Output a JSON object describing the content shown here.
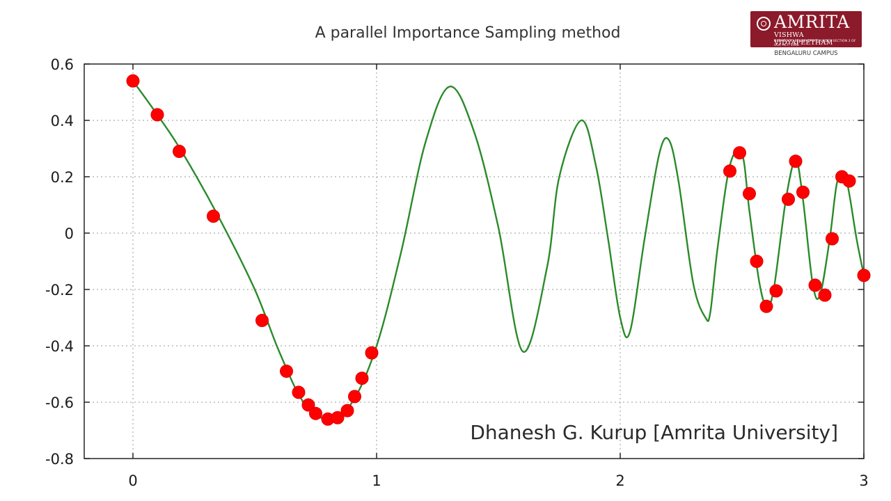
{
  "branding": {
    "logo_name": "AMRITA",
    "logo_subtitle": "VISHWA VIDYAPEETHAM",
    "logo_deemed": "DEEMED TO BE UNIVERSITY UNDER SECTION 3 OF UGC ACT, 1956",
    "campus": "BENGALURU CAMPUS",
    "logo_color": "#8b1a2b"
  },
  "chart_data": {
    "type": "scatter",
    "title": "A parallel Importance Sampling method",
    "annotation": "Dhanesh G. Kurup [Amrita University]",
    "xlabel": "",
    "ylabel": "",
    "xlim": [
      -0.2,
      3
    ],
    "ylim": [
      -0.8,
      0.6
    ],
    "x_ticks": [
      0,
      1,
      2,
      3
    ],
    "x_tick_labels": [
      "0",
      "1",
      "2",
      "3"
    ],
    "y_ticks": [
      0.6,
      0.4,
      0.2,
      0,
      -0.2,
      -0.4,
      -0.6,
      -0.8
    ],
    "y_tick_labels": [
      "0.6",
      "0.4",
      "0.2",
      "0",
      "-0.2",
      "-0.4",
      "-0.6",
      "-0.8"
    ],
    "grid": true,
    "curve": {
      "color": "#2a8a2a",
      "x": [
        0,
        0.1,
        0.2,
        0.35,
        0.5,
        0.6,
        0.7,
        0.8,
        0.9,
        1.0,
        1.1,
        1.2,
        1.3,
        1.4,
        1.5,
        1.6,
        1.7,
        1.75,
        1.84,
        1.9,
        1.95,
        2.0,
        2.04,
        2.1,
        2.16,
        2.2,
        2.24,
        2.3,
        2.35,
        2.37,
        2.4,
        2.45,
        2.5,
        2.53,
        2.57,
        2.6,
        2.63,
        2.68,
        2.72,
        2.75,
        2.79,
        2.82,
        2.86,
        2.89,
        2.92,
        2.94,
        2.97,
        3.0
      ],
      "y": [
        0.54,
        0.42,
        0.29,
        0.06,
        -0.2,
        -0.42,
        -0.6,
        -0.66,
        -0.6,
        -0.4,
        -0.07,
        0.32,
        0.52,
        0.36,
        0.02,
        -0.42,
        -0.12,
        0.2,
        0.4,
        0.24,
        -0.02,
        -0.3,
        -0.35,
        -0.02,
        0.28,
        0.33,
        0.18,
        -0.18,
        -0.3,
        -0.28,
        -0.05,
        0.24,
        0.28,
        0.08,
        -0.17,
        -0.26,
        -0.2,
        0.12,
        0.26,
        0.12,
        -0.18,
        -0.22,
        -0.02,
        0.18,
        0.21,
        0.14,
        -0.02,
        -0.15
      ]
    },
    "points": {
      "color": "#ff0000",
      "x": [
        0.0,
        0.1,
        0.19,
        0.33,
        0.53,
        0.63,
        0.68,
        0.72,
        0.75,
        0.8,
        0.84,
        0.88,
        0.91,
        0.94,
        0.98,
        2.45,
        2.49,
        2.53,
        2.56,
        2.6,
        2.64,
        2.69,
        2.72,
        2.75,
        2.8,
        2.84,
        2.87,
        2.91,
        2.94,
        3.0
      ],
      "y": [
        0.54,
        0.42,
        0.29,
        0.06,
        -0.31,
        -0.49,
        -0.565,
        -0.61,
        -0.64,
        -0.66,
        -0.655,
        -0.63,
        -0.58,
        -0.515,
        -0.425,
        0.22,
        0.285,
        0.14,
        -0.1,
        -0.26,
        -0.205,
        0.12,
        0.255,
        0.145,
        -0.185,
        -0.22,
        -0.02,
        0.2,
        0.185,
        -0.15
      ]
    }
  }
}
